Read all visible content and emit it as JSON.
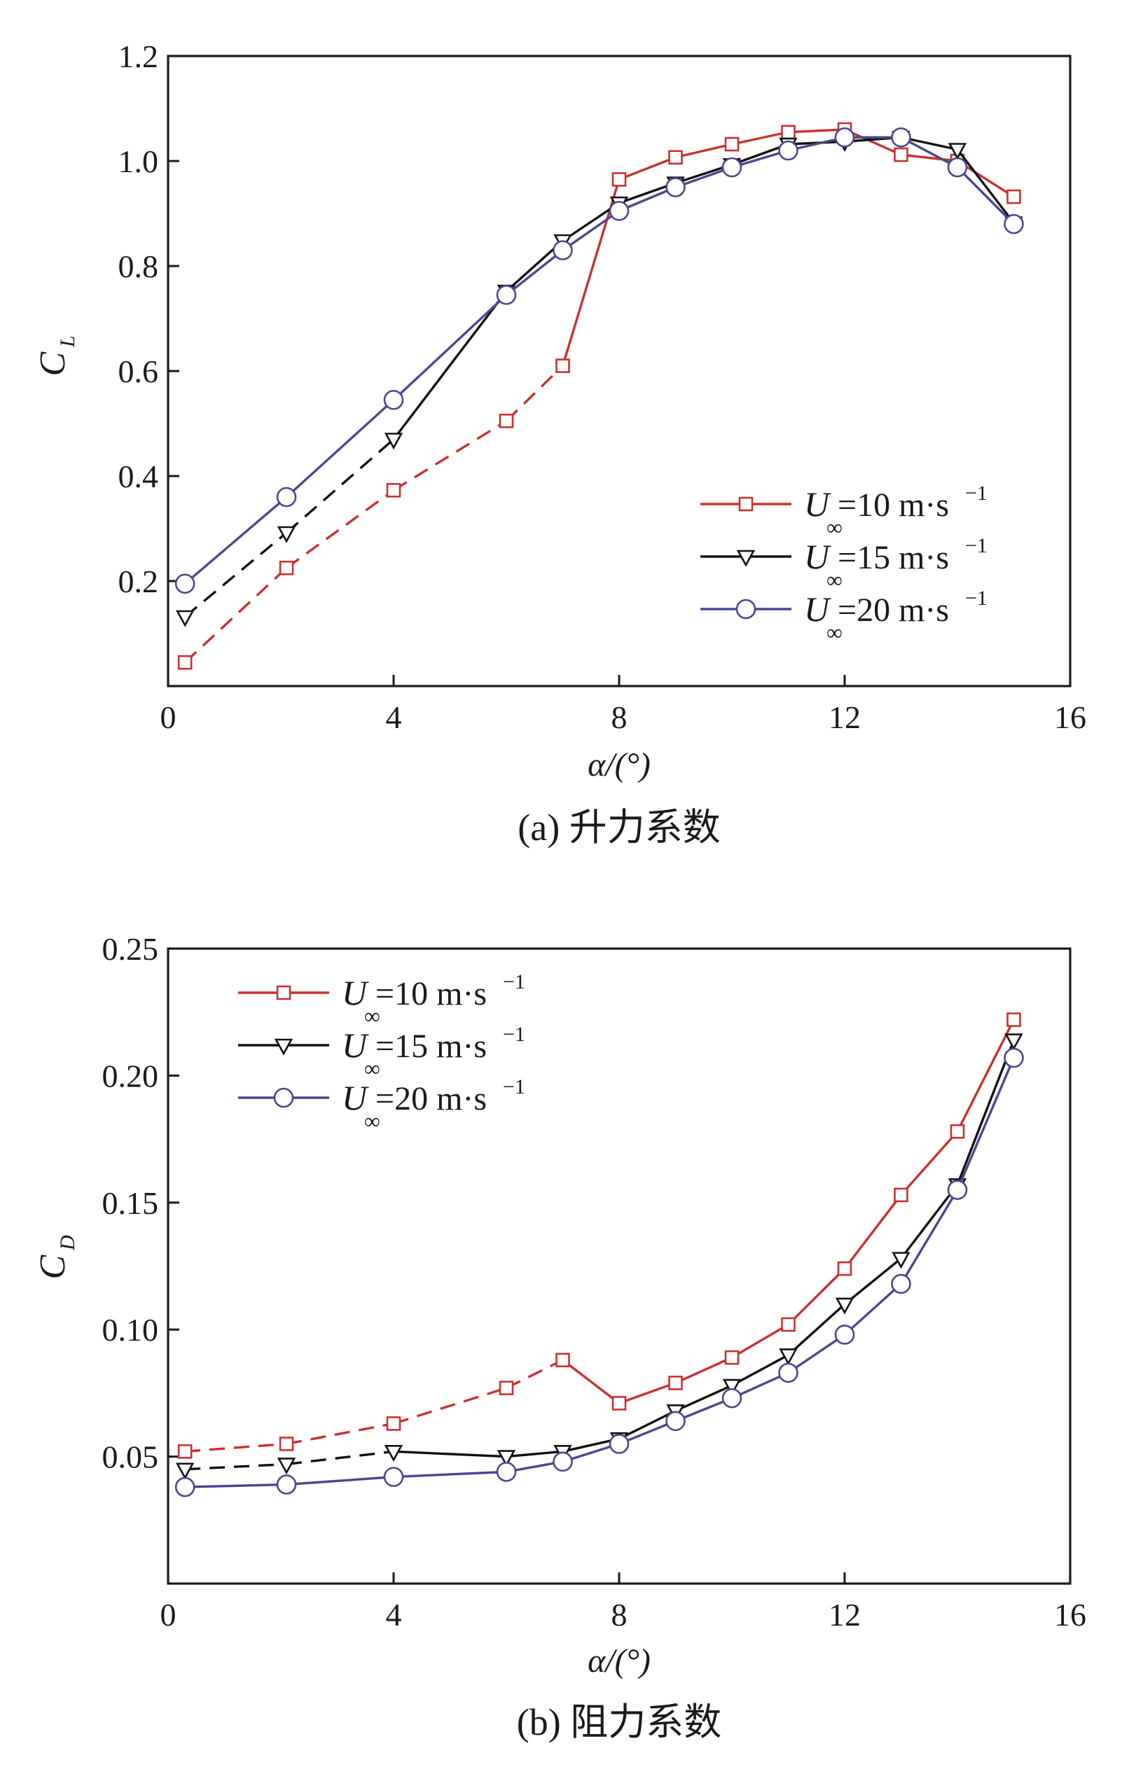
{
  "chart_data": [
    {
      "type": "line",
      "caption": "(a) 升力系数",
      "xlabel": "α/(°)",
      "ylabel_main": "C",
      "ylabel_sub": "L",
      "xlim": [
        0,
        16
      ],
      "ylim": [
        0,
        1.2
      ],
      "xticks": [
        0,
        4,
        8,
        12,
        16
      ],
      "yticks": [
        0.2,
        0.4,
        0.6,
        0.8,
        1.0,
        1.2
      ],
      "ytick_labels": [
        "0.2",
        "0.4",
        "0.6",
        "0.8",
        "1.0",
        "1.2"
      ],
      "legend_position": "lower-right",
      "series": [
        {
          "name": "U∞=10 m·s⁻¹",
          "legend_main": "U",
          "legend_sub": "∞",
          "legend_rest": "=10 m·s",
          "legend_sup": "−1",
          "color": "#c8322f",
          "marker": "square",
          "x": [
            0.3,
            2.1,
            4.0,
            6.0,
            7.0,
            8.0,
            9.0,
            10.0,
            11.0,
            12.0,
            13.0,
            14.0,
            15.0
          ],
          "y": [
            0.045,
            0.225,
            0.373,
            0.505,
            0.61,
            0.965,
            1.007,
            1.032,
            1.055,
            1.06,
            1.012,
            1.0,
            0.932
          ],
          "dashed_until_x": 7.0
        },
        {
          "name": "U∞=15 m·s⁻¹",
          "legend_main": "U",
          "legend_sub": "∞",
          "legend_rest": "=15 m·s",
          "legend_sup": "−1",
          "color": "#111111",
          "marker": "triangle-down",
          "x": [
            0.3,
            2.1,
            4.0,
            6.0,
            7.0,
            8.0,
            9.0,
            10.0,
            11.0,
            12.0,
            13.0,
            14.0,
            15.0
          ],
          "y": [
            0.132,
            0.292,
            0.47,
            0.752,
            0.848,
            0.92,
            0.958,
            0.993,
            1.032,
            1.037,
            1.045,
            1.022,
            0.882
          ],
          "dashed_until_x": 4.0
        },
        {
          "name": "U∞=20 m·s⁻¹",
          "legend_main": "U",
          "legend_sub": "∞",
          "legend_rest": "=20 m·s",
          "legend_sup": "−1",
          "color": "#47498f",
          "marker": "circle",
          "x": [
            0.3,
            2.1,
            4.0,
            6.0,
            7.0,
            8.0,
            9.0,
            10.0,
            11.0,
            12.0,
            13.0,
            14.0,
            15.0
          ],
          "y": [
            0.195,
            0.36,
            0.545,
            0.745,
            0.83,
            0.905,
            0.95,
            0.988,
            1.02,
            1.045,
            1.045,
            0.988,
            0.88
          ],
          "dashed_until_x": null
        }
      ]
    },
    {
      "type": "line",
      "caption": "(b) 阻力系数",
      "xlabel": "α/(°)",
      "ylabel_main": "C",
      "ylabel_sub": "D",
      "xlim": [
        0,
        16
      ],
      "ylim": [
        0,
        0.25
      ],
      "xticks": [
        0,
        4,
        8,
        12,
        16
      ],
      "yticks": [
        0.05,
        0.1,
        0.15,
        0.2,
        0.25
      ],
      "ytick_labels": [
        "0.05",
        "0.10",
        "0.15",
        "0.20",
        "0.25"
      ],
      "legend_position": "top-left",
      "series": [
        {
          "name": "U∞=10 m·s⁻¹",
          "legend_main": "U",
          "legend_sub": "∞",
          "legend_rest": "=10 m·s",
          "legend_sup": "−1",
          "color": "#c8322f",
          "marker": "square",
          "x": [
            0.3,
            2.1,
            4.0,
            6.0,
            7.0,
            8.0,
            9.0,
            10.0,
            11.0,
            12.0,
            13.0,
            14.0,
            15.0
          ],
          "y": [
            0.052,
            0.055,
            0.063,
            0.077,
            0.088,
            0.071,
            0.079,
            0.089,
            0.102,
            0.124,
            0.153,
            0.178,
            0.222
          ],
          "dashed_until_x": 7.0
        },
        {
          "name": "U∞=15 m·s⁻¹",
          "legend_main": "U",
          "legend_sub": "∞",
          "legend_rest": "=15 m·s",
          "legend_sup": "−1",
          "color": "#111111",
          "marker": "triangle-down",
          "x": [
            0.3,
            2.1,
            4.0,
            6.0,
            7.0,
            8.0,
            9.0,
            10.0,
            11.0,
            12.0,
            13.0,
            14.0,
            15.0
          ],
          "y": [
            0.045,
            0.047,
            0.052,
            0.05,
            0.052,
            0.057,
            0.068,
            0.078,
            0.09,
            0.11,
            0.128,
            0.157,
            0.214
          ],
          "dashed_until_x": 4.0
        },
        {
          "name": "U∞=20 m·s⁻¹",
          "legend_main": "U",
          "legend_sub": "∞",
          "legend_rest": "=20 m·s",
          "legend_sup": "−1",
          "color": "#47498f",
          "marker": "circle",
          "x": [
            0.3,
            2.1,
            4.0,
            6.0,
            7.0,
            8.0,
            9.0,
            10.0,
            11.0,
            12.0,
            13.0,
            14.0,
            15.0
          ],
          "y": [
            0.038,
            0.039,
            0.042,
            0.044,
            0.048,
            0.055,
            0.064,
            0.073,
            0.083,
            0.098,
            0.118,
            0.155,
            0.207
          ],
          "dashed_until_x": null
        }
      ]
    }
  ]
}
